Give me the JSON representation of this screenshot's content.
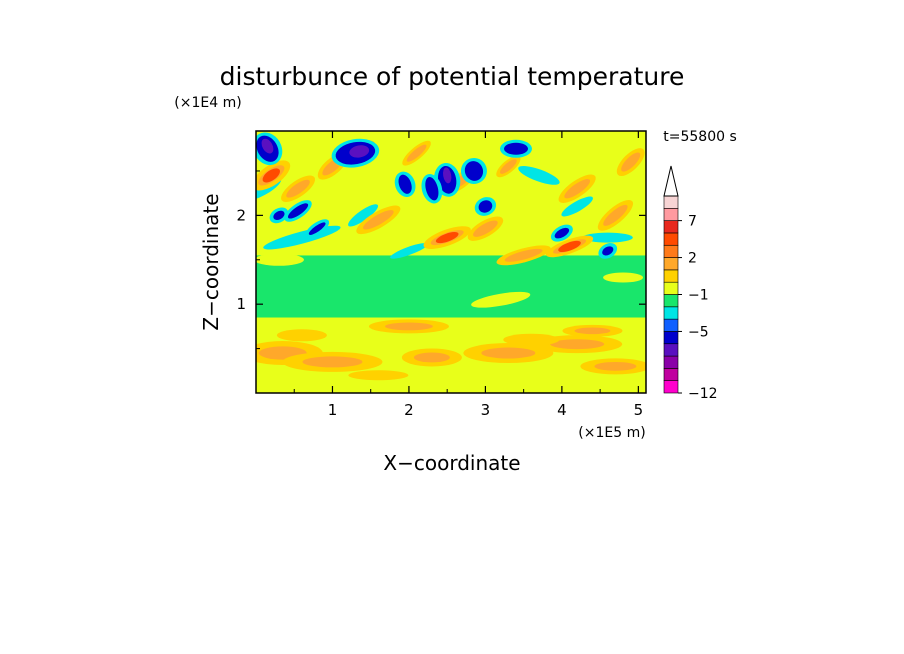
{
  "chart_data": {
    "type": "heatmap",
    "title": "disturbunce of potential temperature",
    "xlabel": "X−coordinate",
    "ylabel": "Z−coordinate",
    "x_unit": "(×1E5 m)",
    "y_unit": "(×1E4 m)",
    "time_label": "t=55800 s",
    "xlim": [
      0,
      5.1
    ],
    "ylim": [
      0,
      2.95
    ],
    "x_ticks": [
      1,
      2,
      3,
      4,
      5
    ],
    "y_ticks": [
      1,
      2
    ],
    "colorbar": {
      "extend_max": true,
      "colors": [
        "#ff00cc",
        "#c0009f",
        "#8a00a8",
        "#5a10c0",
        "#0000cc",
        "#1060ff",
        "#00e5e5",
        "#19e66b",
        "#e8ff1a",
        "#ffd100",
        "#ffa82a",
        "#ff7a1a",
        "#ff4a00",
        "#e8281e",
        "#ff9aa0",
        "#f7d4d4"
      ],
      "tick_labels": [
        "−12",
        "−5",
        "−1",
        "2",
        "7"
      ],
      "tick_levels": [
        0,
        5,
        8,
        11,
        14
      ]
    }
  }
}
